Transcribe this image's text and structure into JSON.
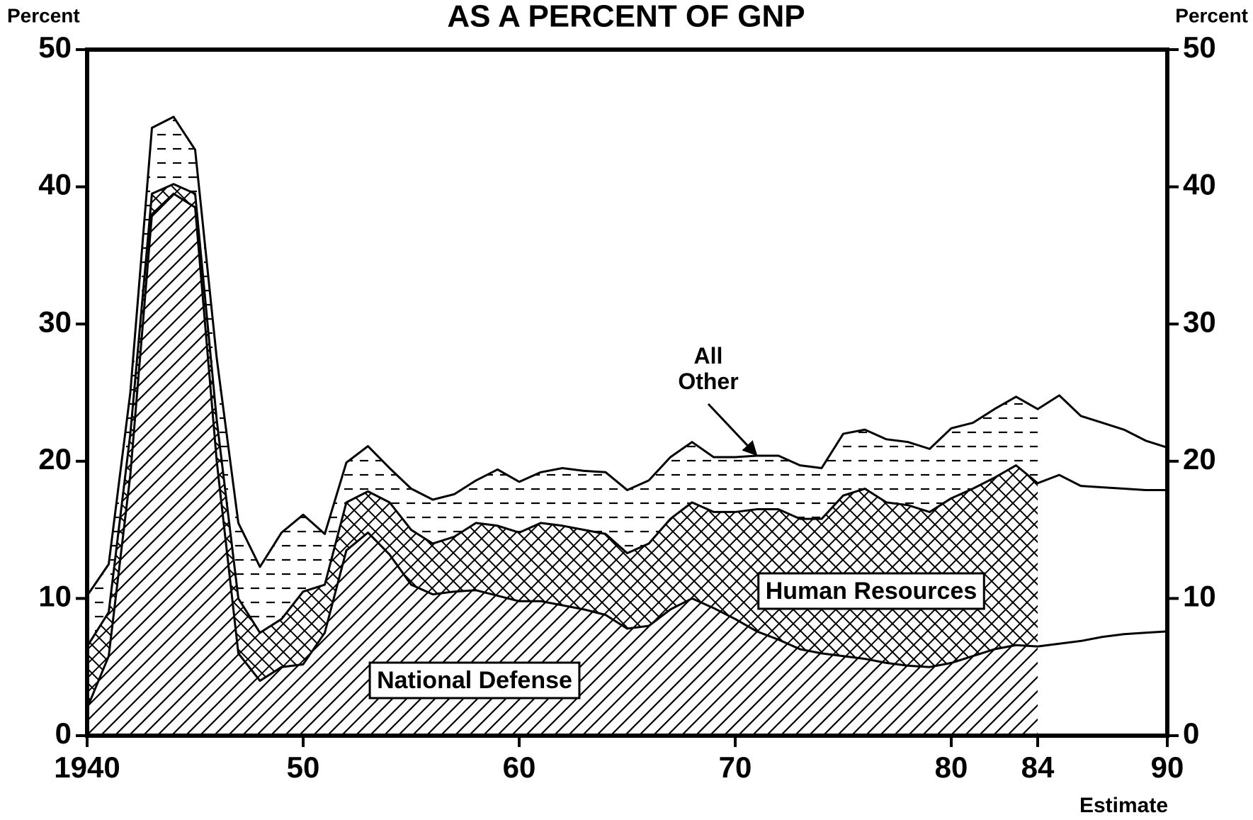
{
  "chart_data": {
    "type": "stacked_area",
    "title": "AS A PERCENT OF GNP",
    "ylabel": "Percent",
    "y2label": "Percent",
    "x_note": "Estimate",
    "estimate_start": 1984,
    "x": [
      1940,
      1941,
      1942,
      1943,
      1944,
      1945,
      1946,
      1947,
      1948,
      1949,
      1950,
      1951,
      1952,
      1953,
      1954,
      1955,
      1956,
      1957,
      1958,
      1959,
      1960,
      1961,
      1962,
      1963,
      1964,
      1965,
      1966,
      1967,
      1968,
      1969,
      1970,
      1971,
      1972,
      1973,
      1974,
      1975,
      1976,
      1977,
      1978,
      1979,
      1980,
      1981,
      1982,
      1983,
      1984,
      1985,
      1986,
      1987,
      1988,
      1989,
      1990
    ],
    "series": [
      {
        "name": "National Defense",
        "color": "#000000",
        "pattern": "diagonal",
        "values": [
          2,
          5.8,
          19,
          38,
          39.5,
          38.5,
          20,
          6,
          4,
          5,
          5.2,
          7.5,
          13.5,
          14.8,
          13.2,
          11,
          10.3,
          10.5,
          10.6,
          10.2,
          9.8,
          9.8,
          9.5,
          9.2,
          8.8,
          7.8,
          8,
          9.2,
          10,
          9.3,
          8.5,
          7.6,
          7,
          6.3,
          6,
          5.8,
          5.6,
          5.3,
          5.1,
          5,
          5.3,
          5.8,
          6.3,
          6.6,
          6.5,
          6.7,
          6.9,
          7.2,
          7.4,
          7.5,
          7.6
        ]
      },
      {
        "name": "Human Resources",
        "color": "#000000",
        "pattern": "crosshatch",
        "values": [
          4.5,
          3.2,
          3,
          1.5,
          0.7,
          1,
          3,
          4,
          3.5,
          3.5,
          5.3,
          3.5,
          3.5,
          3,
          3.8,
          4,
          3.7,
          4,
          4.9,
          5.1,
          5,
          5.7,
          5.8,
          5.8,
          5.9,
          5.5,
          6,
          6.6,
          7,
          7,
          7.8,
          8.9,
          9.5,
          9.5,
          9.8,
          11.7,
          12.4,
          11.7,
          11.7,
          11.3,
          12,
          12.2,
          12.5,
          13.1,
          11.9,
          12.3,
          11.3,
          10.9,
          10.6,
          10.4,
          10.3
        ]
      },
      {
        "name": "All Other",
        "color": "#000000",
        "pattern": "dashes",
        "values": [
          3.7,
          3.5,
          3,
          4.8,
          4.9,
          3.2,
          4.5,
          5.5,
          4.8,
          6.3,
          5.6,
          3.7,
          2.9,
          3.3,
          2.5,
          3,
          3.2,
          3.1,
          3.1,
          4.1,
          3.7,
          3.7,
          4.2,
          4.3,
          4.5,
          4.6,
          4.6,
          4.5,
          4.4,
          4,
          4,
          3.9,
          3.9,
          3.9,
          3.7,
          4.5,
          4.3,
          4.6,
          4.6,
          4.6,
          5.1,
          4.8,
          5,
          5,
          5.4,
          5.8,
          5.1,
          4.7,
          4.3,
          3.6,
          3.1
        ]
      }
    ],
    "xlim": [
      1940,
      1990
    ],
    "xticks": [
      1940,
      {
        "value": 1950,
        "label": "50"
      },
      {
        "value": 1960,
        "label": "60"
      },
      {
        "value": 1970,
        "label": "70"
      },
      {
        "value": 1980,
        "label": "80"
      },
      {
        "value": 1984,
        "label": "84"
      },
      {
        "value": 1990,
        "label": "90"
      }
    ],
    "ylim": [
      0,
      50
    ],
    "yticks": [
      0,
      10,
      20,
      30,
      40,
      50
    ],
    "y2lim": [
      0,
      50
    ],
    "y2ticks": [
      0,
      10,
      20,
      30,
      40,
      50
    ]
  }
}
